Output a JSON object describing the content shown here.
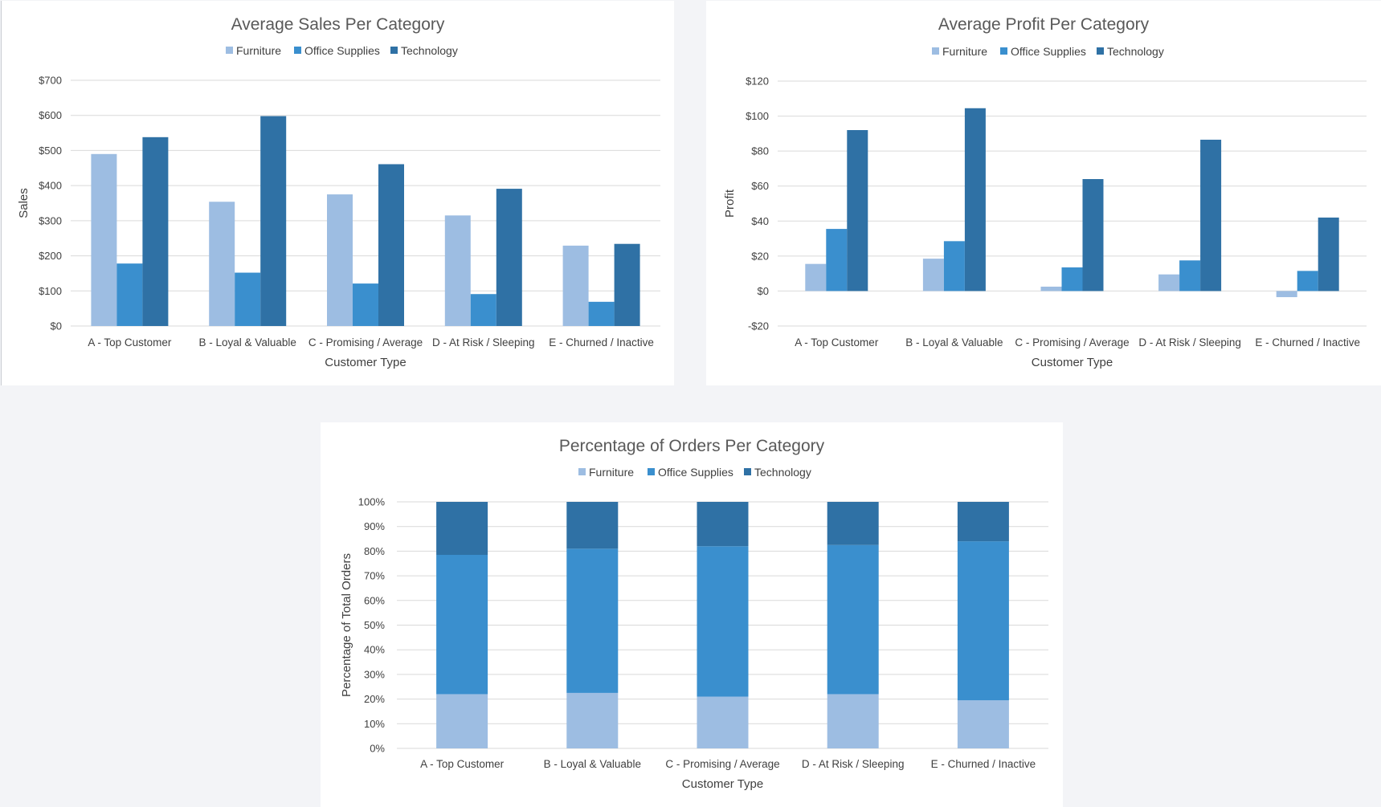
{
  "colors": {
    "Furniture": "#9dbde2",
    "Office Supplies": "#3a8fce",
    "Technology": "#2f71a5"
  },
  "chart_data": [
    {
      "id": "sales",
      "type": "bar",
      "title": "Average Sales Per Category",
      "xlabel": "Customer Type",
      "ylabel": "Sales",
      "categories": [
        "A - Top Customer",
        "B - Loyal & Valuable",
        "C - Promising / Average",
        "D - At Risk / Sleeping",
        "E - Churned / Inactive"
      ],
      "series": [
        {
          "name": "Furniture",
          "values": [
            490,
            354,
            375,
            315,
            229
          ]
        },
        {
          "name": "Office Supplies",
          "values": [
            178,
            152,
            121,
            91,
            69
          ]
        },
        {
          "name": "Technology",
          "values": [
            538,
            598,
            461,
            391,
            234
          ]
        }
      ],
      "ylim": [
        0,
        700
      ],
      "yticks": [
        0,
        100,
        200,
        300,
        400,
        500,
        600,
        700
      ],
      "ytick_labels": [
        "$0",
        "$100",
        "$200",
        "$300",
        "$400",
        "$500",
        "$600",
        "$700"
      ],
      "grid": true,
      "legend": "top-center"
    },
    {
      "id": "profit",
      "type": "bar",
      "title": "Average Profit Per Category",
      "xlabel": "Customer Type",
      "ylabel": "Profit",
      "categories": [
        "A - Top Customer",
        "B - Loyal & Valuable",
        "C - Promising / Average",
        "D - At Risk / Sleeping",
        "E - Churned / Inactive"
      ],
      "series": [
        {
          "name": "Furniture",
          "values": [
            15.5,
            18.5,
            2.5,
            9.5,
            -3.5
          ]
        },
        {
          "name": "Office Supplies",
          "values": [
            35.5,
            28.5,
            13.5,
            17.5,
            11.5
          ]
        },
        {
          "name": "Technology",
          "values": [
            92,
            104.5,
            64,
            86.5,
            42
          ]
        }
      ],
      "ylim": [
        -20,
        120
      ],
      "yticks": [
        -20,
        0,
        20,
        40,
        60,
        80,
        100,
        120
      ],
      "ytick_labels": [
        "-$20",
        "$0",
        "$20",
        "$40",
        "$60",
        "$80",
        "$100",
        "$120"
      ],
      "grid": true,
      "legend": "top-center"
    },
    {
      "id": "orders",
      "type": "bar",
      "stacked": true,
      "title": "Percentage of Orders Per Category",
      "xlabel": "Customer Type",
      "ylabel": "Percentage of Total Orders",
      "categories": [
        "A - Top Customer",
        "B - Loyal & Valuable",
        "C - Promising / Average",
        "D - At Risk / Sleeping",
        "E - Churned / Inactive"
      ],
      "series": [
        {
          "name": "Furniture",
          "values": [
            22,
            22.5,
            21,
            22,
            19.5
          ]
        },
        {
          "name": "Office Supplies",
          "values": [
            56.5,
            58.5,
            61,
            60.5,
            64.5
          ]
        },
        {
          "name": "Technology",
          "values": [
            21.5,
            19,
            18,
            17.5,
            16
          ]
        }
      ],
      "ylim": [
        0,
        100
      ],
      "yticks": [
        0,
        10,
        20,
        30,
        40,
        50,
        60,
        70,
        80,
        90,
        100
      ],
      "ytick_labels": [
        "0%",
        "10%",
        "20%",
        "30%",
        "40%",
        "50%",
        "60%",
        "70%",
        "80%",
        "90%",
        "100%"
      ],
      "grid": true,
      "legend": "top-center"
    }
  ]
}
